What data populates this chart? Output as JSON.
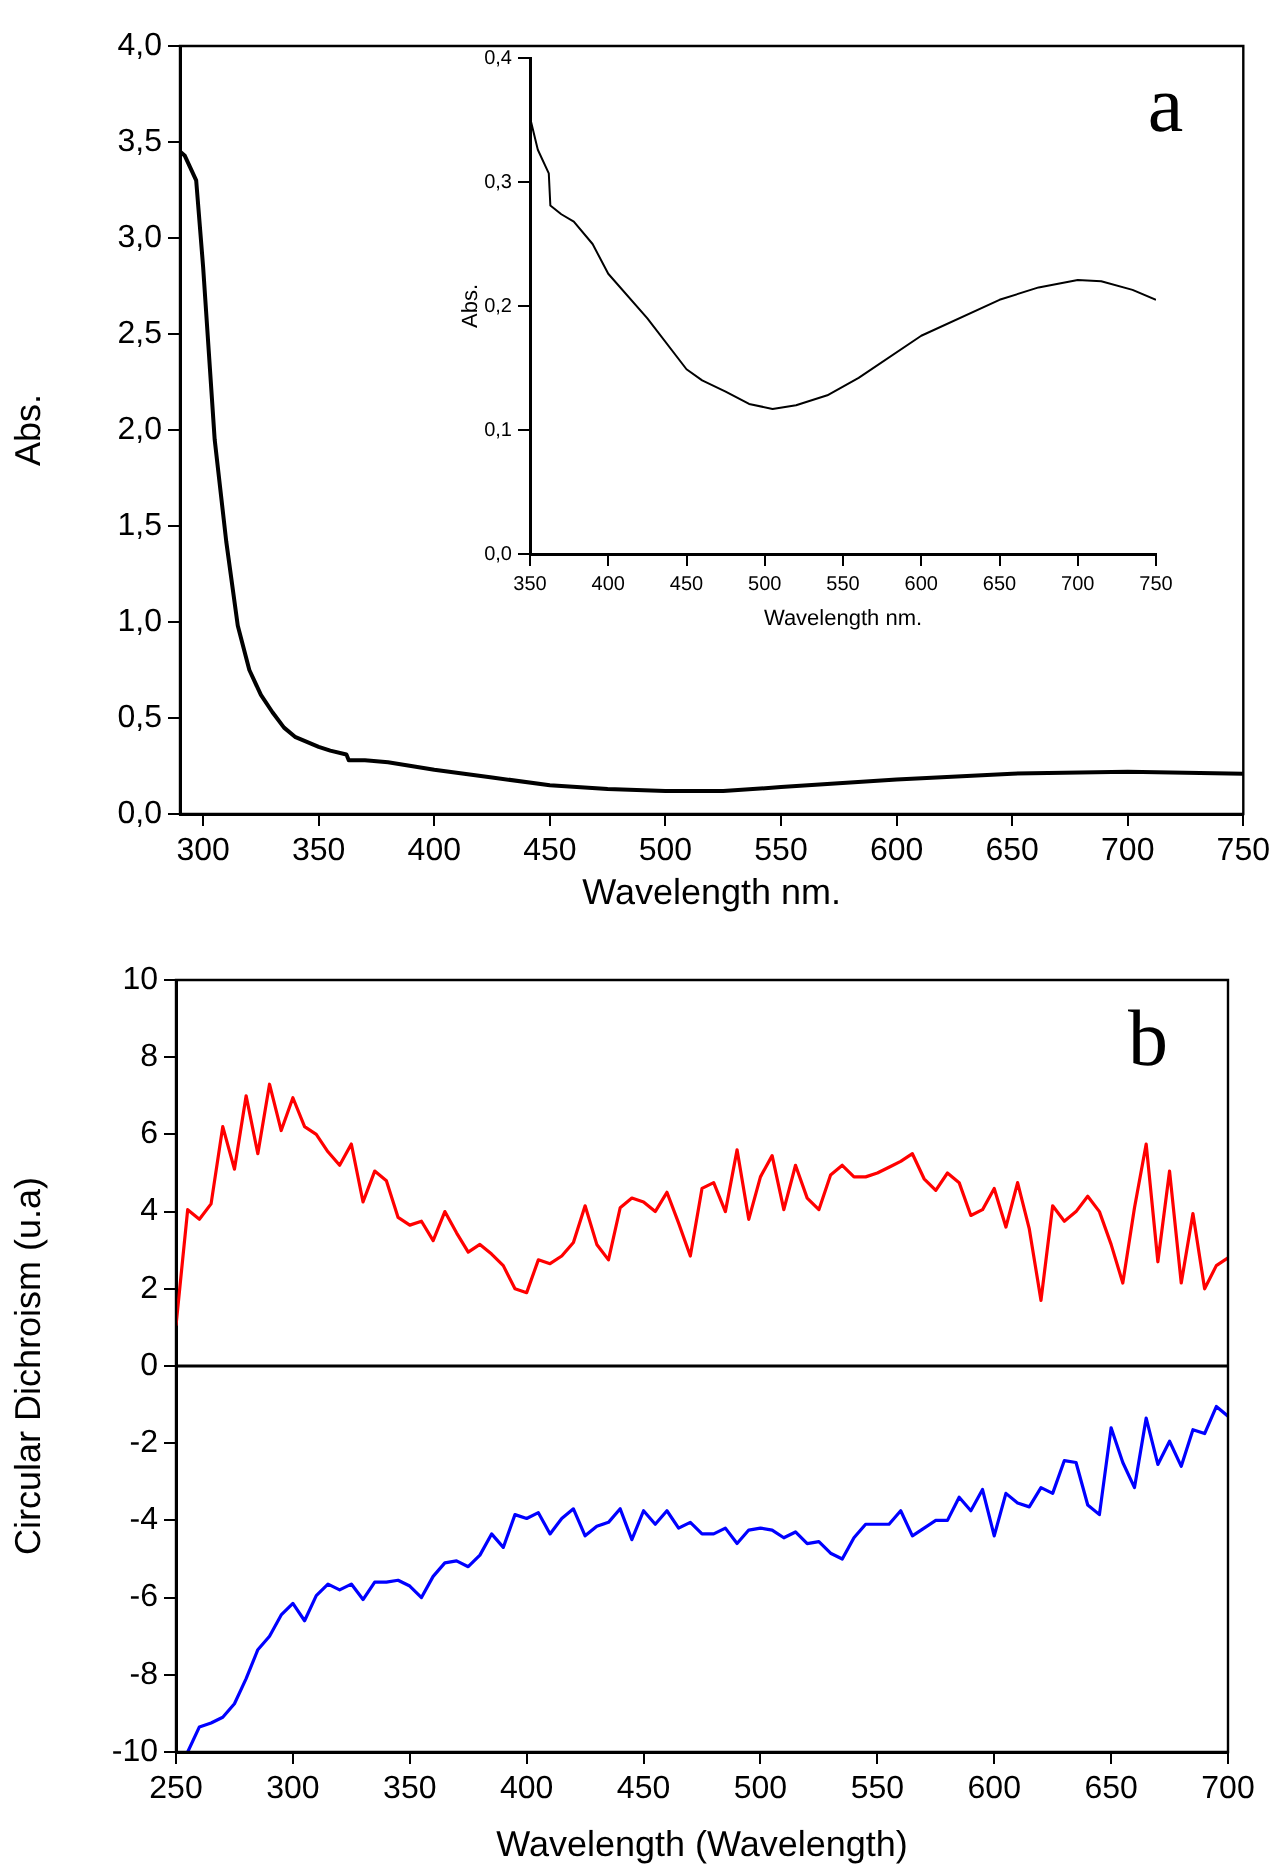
{
  "chart_data": [
    {
      "type": "line",
      "xlabel": "Wavelength nm.",
      "ylabel": "Abs.",
      "annotations": [
        "a"
      ],
      "xlim": [
        290,
        750
      ],
      "xticks": [
        300,
        350,
        400,
        450,
        500,
        550,
        600,
        650,
        700,
        750
      ],
      "ylim": [
        0,
        4
      ],
      "yticks": [
        {
          "value": 0,
          "label": "0,0"
        },
        {
          "value": 0.5,
          "label": "0,5"
        },
        {
          "value": 1,
          "label": "1,0"
        },
        {
          "value": 1.5,
          "label": "1,5"
        },
        {
          "value": 2,
          "label": "2,0"
        },
        {
          "value": 2.5,
          "label": "2,5"
        },
        {
          "value": 3,
          "label": "3,0"
        },
        {
          "value": 3.5,
          "label": "3,5"
        },
        {
          "value": 4,
          "label": "4,0"
        }
      ],
      "grid": false,
      "marker": "none",
      "line_style": "solid",
      "series": [
        {
          "color": "#000000",
          "x": [
            290,
            292,
            297,
            300,
            305,
            310,
            315,
            320,
            325,
            330,
            335,
            340,
            350,
            355,
            362,
            363,
            370,
            380,
            390,
            400,
            425,
            450,
            475,
            500,
            525,
            550,
            600,
            650,
            700,
            750
          ],
          "values": [
            3.45,
            3.43,
            3.3,
            2.85,
            1.95,
            1.42,
            0.98,
            0.75,
            0.62,
            0.53,
            0.45,
            0.4,
            0.35,
            0.33,
            0.31,
            0.28,
            0.28,
            0.27,
            0.25,
            0.23,
            0.19,
            0.15,
            0.13,
            0.12,
            0.12,
            0.14,
            0.18,
            0.21,
            0.22,
            0.21
          ]
        }
      ]
    },
    {
      "type": "line",
      "xlabel": "Wavelength nm.",
      "ylabel": "Abs.",
      "xlim": [
        350,
        750
      ],
      "xticks": [
        350,
        400,
        450,
        500,
        550,
        600,
        650,
        700,
        750
      ],
      "ylim": [
        0,
        0.4
      ],
      "yticks": [
        {
          "value": 0,
          "label": "0,0"
        },
        {
          "value": 0.1,
          "label": "0,1"
        },
        {
          "value": 0.2,
          "label": "0,2"
        },
        {
          "value": 0.3,
          "label": "0,3"
        },
        {
          "value": 0.4,
          "label": "0,4"
        }
      ],
      "grid": false,
      "marker": "none",
      "line_style": "solid",
      "series": [
        {
          "color": "#000000",
          "x": [
            350,
            355,
            362,
            363,
            370,
            378,
            390,
            400,
            425,
            450,
            460,
            475,
            490,
            505,
            520,
            540,
            560,
            600,
            650,
            675,
            700,
            715,
            735,
            750
          ],
          "values": [
            0.352,
            0.326,
            0.307,
            0.281,
            0.274,
            0.268,
            0.25,
            0.226,
            0.19,
            0.149,
            0.14,
            0.131,
            0.121,
            0.117,
            0.12,
            0.128,
            0.142,
            0.176,
            0.205,
            0.215,
            0.221,
            0.22,
            0.213,
            0.205
          ]
        }
      ]
    },
    {
      "type": "line",
      "xlabel": "Wavelength (Wavelength)",
      "ylabel": "Circular Dichroism (u.a)",
      "annotations": [
        "b"
      ],
      "xlim": [
        250,
        700
      ],
      "xticks": [
        250,
        300,
        350,
        400,
        450,
        500,
        550,
        600,
        650,
        700
      ],
      "ylim": [
        -10,
        10
      ],
      "yticks": [
        -10,
        -8,
        -6,
        -4,
        -2,
        0,
        2,
        4,
        6,
        8,
        10
      ],
      "grid": false,
      "marker": "none",
      "line_style": "solid",
      "ref_lines": [
        {
          "axis": "y",
          "value": 0,
          "color": "#000000"
        }
      ],
      "x": [
        250,
        255,
        260,
        265,
        270,
        275,
        280,
        285,
        290,
        295,
        300,
        305,
        310,
        315,
        320,
        325,
        330,
        335,
        340,
        345,
        350,
        355,
        360,
        365,
        370,
        375,
        380,
        385,
        390,
        395,
        400,
        405,
        410,
        415,
        420,
        425,
        430,
        435,
        440,
        445,
        450,
        455,
        460,
        465,
        470,
        475,
        480,
        485,
        490,
        495,
        500,
        505,
        510,
        515,
        520,
        525,
        530,
        535,
        540,
        545,
        550,
        555,
        560,
        565,
        570,
        575,
        580,
        585,
        590,
        595,
        600,
        605,
        610,
        615,
        620,
        625,
        630,
        635,
        640,
        645,
        650,
        655,
        660,
        665,
        670,
        675,
        680,
        685,
        690,
        695,
        700
      ],
      "series": [
        {
          "color": "#ff0000",
          "values": [
            1.05,
            4.05,
            3.8,
            4.2,
            6.2,
            5.1,
            7.0,
            5.5,
            7.3,
            6.1,
            6.95,
            6.2,
            6.0,
            5.55,
            5.2,
            5.75,
            4.25,
            5.05,
            4.8,
            3.85,
            3.65,
            3.75,
            3.25,
            4.0,
            3.45,
            2.95,
            3.15,
            2.9,
            2.6,
            2.0,
            1.9,
            2.75,
            2.65,
            2.85,
            3.2,
            4.15,
            3.15,
            2.75,
            4.1,
            4.35,
            4.25,
            4.0,
            4.5,
            3.7,
            2.85,
            4.6,
            4.75,
            4.0,
            5.6,
            3.8,
            4.9,
            5.45,
            4.05,
            5.2,
            4.35,
            4.05,
            4.95,
            5.2,
            4.9,
            4.9,
            5.0,
            5.15,
            5.3,
            5.5,
            4.85,
            4.55,
            5.0,
            4.75,
            3.9,
            4.05,
            4.6,
            3.6,
            4.75,
            3.55,
            1.7,
            4.15,
            3.75,
            4.0,
            4.4,
            4.0,
            3.15,
            2.15,
            4.1,
            5.75,
            2.7,
            5.05,
            2.15,
            3.95,
            2.0,
            2.6,
            2.8
          ]
        },
        {
          "color": "#0000ff",
          "values": [
            null,
            -10.0,
            -9.35,
            -9.25,
            -9.1,
            -8.75,
            -8.1,
            -7.35,
            -7.0,
            -6.45,
            -6.15,
            -6.6,
            -5.95,
            -5.65,
            -5.8,
            -5.65,
            -6.05,
            -5.6,
            -5.6,
            -5.55,
            -5.7,
            -6.0,
            -5.45,
            -5.1,
            -5.05,
            -5.2,
            -4.9,
            -4.35,
            -4.7,
            -3.85,
            -3.95,
            -3.8,
            -4.35,
            -3.95,
            -3.7,
            -4.4,
            -4.15,
            -4.05,
            -3.7,
            -4.5,
            -3.75,
            -4.1,
            -3.75,
            -4.2,
            -4.05,
            -4.35,
            -4.35,
            -4.2,
            -4.6,
            -4.25,
            -4.2,
            -4.25,
            -4.45,
            -4.3,
            -4.6,
            -4.55,
            -4.85,
            -5.0,
            -4.45,
            -4.1,
            -4.1,
            -4.1,
            -3.75,
            -4.4,
            -4.2,
            -4.0,
            -4.0,
            -3.4,
            -3.75,
            -3.2,
            -4.4,
            -3.3,
            -3.55,
            -3.65,
            -3.15,
            -3.3,
            -2.45,
            -2.5,
            -3.6,
            -3.85,
            -1.6,
            -2.5,
            -3.15,
            -1.35,
            -2.55,
            -1.95,
            -2.6,
            -1.65,
            -1.75,
            -1.05,
            -1.3
          ]
        }
      ]
    }
  ]
}
